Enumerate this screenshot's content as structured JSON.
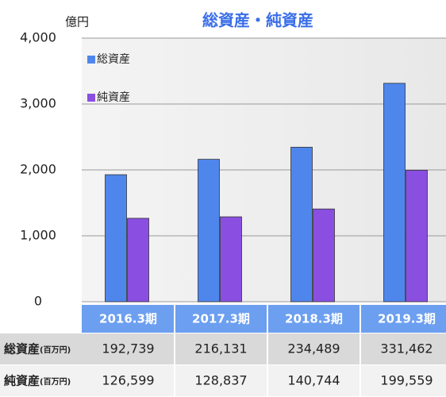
{
  "chart_data": {
    "type": "bar",
    "title": "総資産・純資産",
    "y_unit": "億円",
    "categories": [
      "2016.3期",
      "2017.3期",
      "2018.3期",
      "2019.3期"
    ],
    "series": [
      {
        "name": "総資産",
        "color": "#4f86ec",
        "values": [
          1927.39,
          2161.31,
          2344.89,
          3314.62
        ],
        "value_labels": [
          "192,739",
          "216,131",
          "234,489",
          "331,462"
        ]
      },
      {
        "name": "純資産",
        "color": "#8a4fe0",
        "values": [
          1265.99,
          1288.37,
          1407.44,
          1995.59
        ],
        "value_labels": [
          "126,599",
          "128,837",
          "140,744",
          "199,559"
        ]
      }
    ],
    "table_unit": "(百万円)",
    "ylim": [
      0,
      4000
    ],
    "yticks": [
      0,
      {
        "value": 1000,
        "label": "1,000"
      },
      {
        "value": 2000,
        "label": "2,000"
      },
      {
        "value": 3000,
        "label": "3,000"
      },
      {
        "value": 4000,
        "label": "4,000"
      }
    ],
    "grid": true,
    "legend": "top-left"
  }
}
